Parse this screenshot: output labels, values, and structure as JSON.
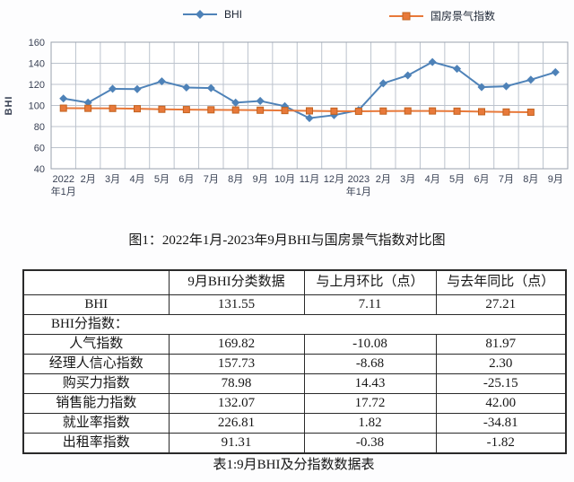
{
  "chart_data": {
    "type": "line",
    "title": "",
    "xlabel": "",
    "ylabel": "BHI",
    "ylim": [
      40,
      160
    ],
    "ytick_step": 20,
    "grid": true,
    "legend_position": "top",
    "categories": [
      "2022年1月",
      "2月",
      "3月",
      "4月",
      "5月",
      "6月",
      "7月",
      "8月",
      "9月",
      "10月",
      "11月",
      "12月",
      "2023年1月",
      "2月",
      "3月",
      "4月",
      "5月",
      "6月",
      "7月",
      "8月",
      "9月"
    ],
    "series": [
      {
        "name": "BHI",
        "color": "#4e82b8",
        "marker": "diamond",
        "values": [
          106.6,
          102.7,
          115.8,
          115.5,
          122.9,
          117.0,
          116.5,
          102.7,
          104.3,
          99.3,
          88.0,
          90.8,
          95.6,
          121.0,
          128.5,
          141.2,
          134.8,
          117.4,
          118.2,
          124.4,
          131.55
        ]
      },
      {
        "name": "国房景气指数",
        "color": "#e8793a",
        "marker": "square",
        "marker_border": "#c2621f",
        "values": [
          97.4,
          97.3,
          97.2,
          96.9,
          96.4,
          96.1,
          95.9,
          95.7,
          95.5,
          95.2,
          94.9,
          94.6,
          94.5,
          94.7,
          94.8,
          94.8,
          94.6,
          94.1,
          93.8,
          93.6,
          null
        ]
      }
    ]
  },
  "figure_caption": "图1：2022年1月-2023年9月BHI与国房景气指数对比图",
  "table": {
    "headers": [
      "",
      "9月BHI分类数据",
      "与上月环比（点）",
      "与去年同比（点）"
    ],
    "rows": [
      {
        "cells": [
          "BHI",
          "131.55",
          "7.11",
          "27.21"
        ],
        "span": false
      },
      {
        "cells": [
          "BHI分指数："
        ],
        "span": true
      },
      {
        "cells": [
          "人气指数",
          "169.82",
          "-10.08",
          "81.97"
        ],
        "span": false
      },
      {
        "cells": [
          "经理人信心指数",
          "157.73",
          "-8.68",
          "2.30"
        ],
        "span": false
      },
      {
        "cells": [
          "购买力指数",
          "78.98",
          "14.43",
          "-25.15"
        ],
        "span": false
      },
      {
        "cells": [
          "销售能力指数",
          "132.07",
          "17.72",
          "42.00"
        ],
        "span": false
      },
      {
        "cells": [
          "就业率指数",
          "226.81",
          "1.82",
          "-34.81"
        ],
        "span": false
      },
      {
        "cells": [
          "出租率指数",
          "91.31",
          "-0.38",
          "-1.82"
        ],
        "span": false
      }
    ]
  },
  "table_caption": "表1:9月BHI及分指数数据表"
}
